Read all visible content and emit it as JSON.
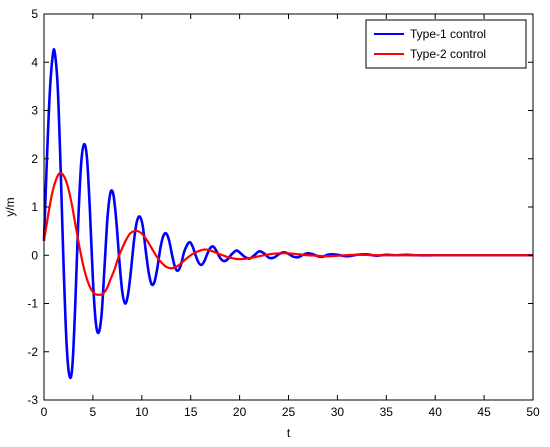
{
  "chart_data": {
    "type": "line",
    "title": "",
    "xlabel": "t",
    "ylabel": "y/m",
    "xlim": [
      0,
      50
    ],
    "ylim": [
      -3,
      5
    ],
    "xticks": [
      0,
      5,
      10,
      15,
      20,
      25,
      30,
      35,
      40,
      45,
      50
    ],
    "yticks": [
      -3,
      -2,
      -1,
      0,
      1,
      2,
      3,
      4,
      5
    ],
    "grid": false,
    "legend_position": "top-right",
    "series": [
      {
        "name": "Type-1 control",
        "color": "#0000ff",
        "x": [
          0,
          0.3,
          0.6,
          0.9,
          1.1,
          1.4,
          1.7,
          2.0,
          2.3,
          2.6,
          2.9,
          3.2,
          3.5,
          3.8,
          4.1,
          4.4,
          4.7,
          5.0,
          5.3,
          5.6,
          5.9,
          6.2,
          6.5,
          6.8,
          7.1,
          7.4,
          7.7,
          8.0,
          8.3,
          8.6,
          8.9,
          9.2,
          9.5,
          9.8,
          10.1,
          10.4,
          10.7,
          11.0,
          11.3,
          11.6,
          11.9,
          12.2,
          12.5,
          12.8,
          13.1,
          13.4,
          13.7,
          14.0,
          14.3,
          14.6,
          14.9,
          15.2,
          15.5,
          15.8,
          16.1,
          16.4,
          16.7,
          17.0,
          17.3,
          17.6,
          17.9,
          18.2,
          18.5,
          18.8,
          19.1,
          19.4,
          19.7,
          20.0,
          20.5,
          21.0,
          21.5,
          22.0,
          22.5,
          23.0,
          23.5,
          24.0,
          24.5,
          25.0,
          25.5,
          26.0,
          26.5,
          27.0,
          27.5,
          28.0,
          28.5,
          29.0,
          29.5,
          30.0,
          31.0,
          32.0,
          33.0,
          34.0,
          35.0,
          36.0,
          37.0,
          38.0,
          40.0,
          42.0,
          44.0,
          46.0,
          48.0,
          50.0
        ],
        "y": [
          0.3,
          2.0,
          3.4,
          4.15,
          4.2,
          3.5,
          1.8,
          -0.2,
          -1.8,
          -2.5,
          -2.3,
          -1.0,
          0.7,
          1.9,
          2.3,
          2.0,
          0.9,
          -0.5,
          -1.4,
          -1.6,
          -1.2,
          -0.2,
          0.8,
          1.3,
          1.25,
          0.7,
          -0.1,
          -0.75,
          -1.0,
          -0.8,
          -0.3,
          0.3,
          0.7,
          0.8,
          0.6,
          0.1,
          -0.35,
          -0.6,
          -0.55,
          -0.25,
          0.15,
          0.4,
          0.45,
          0.3,
          0.0,
          -0.25,
          -0.32,
          -0.2,
          0.05,
          0.2,
          0.27,
          0.18,
          0.0,
          -0.15,
          -0.2,
          -0.12,
          0.03,
          0.15,
          0.18,
          0.1,
          -0.02,
          -0.1,
          -0.12,
          -0.08,
          0.0,
          0.06,
          0.1,
          0.06,
          -0.03,
          -0.07,
          0.0,
          0.08,
          0.04,
          -0.05,
          -0.05,
          0.02,
          0.06,
          0.03,
          -0.03,
          -0.04,
          0.01,
          0.04,
          0.02,
          -0.02,
          -0.03,
          0.01,
          0.02,
          0.01,
          -0.02,
          0.01,
          0.02,
          -0.01,
          0.01,
          0.0,
          0.01,
          0.0,
          0.0,
          0.0,
          0.0,
          0.0,
          0.0,
          0.0
        ]
      },
      {
        "name": "Type-2 control",
        "color": "#ff0000",
        "x": [
          0,
          0.4,
          0.8,
          1.2,
          1.6,
          2.0,
          2.4,
          2.8,
          3.2,
          3.6,
          4.0,
          4.4,
          4.8,
          5.2,
          5.6,
          6.0,
          6.4,
          6.8,
          7.2,
          7.6,
          8.0,
          8.4,
          8.8,
          9.2,
          9.6,
          10.0,
          10.4,
          10.8,
          11.2,
          11.6,
          12.0,
          12.5,
          13.0,
          13.5,
          14.0,
          14.5,
          15.0,
          15.5,
          16.0,
          16.5,
          17.0,
          17.5,
          18.0,
          19.0,
          20.0,
          21.0,
          22.0,
          23.0,
          24.0,
          25.0,
          26.0,
          27.0,
          28.0,
          29.0,
          30.0,
          32.0,
          34.0,
          36.0,
          38.0,
          40.0,
          45.0,
          50.0
        ],
        "y": [
          0.3,
          0.8,
          1.25,
          1.55,
          1.7,
          1.65,
          1.45,
          1.1,
          0.65,
          0.2,
          -0.2,
          -0.5,
          -0.7,
          -0.8,
          -0.82,
          -0.8,
          -0.7,
          -0.5,
          -0.3,
          -0.05,
          0.15,
          0.32,
          0.45,
          0.5,
          0.5,
          0.45,
          0.35,
          0.22,
          0.08,
          -0.05,
          -0.15,
          -0.24,
          -0.27,
          -0.24,
          -0.17,
          -0.08,
          0.0,
          0.06,
          0.1,
          0.12,
          0.1,
          0.06,
          0.02,
          -0.05,
          -0.08,
          -0.06,
          -0.02,
          0.02,
          0.04,
          0.04,
          0.02,
          0.0,
          -0.01,
          -0.02,
          -0.01,
          0.01,
          0.0,
          0.0,
          0.0,
          0.0,
          0.0,
          0.0
        ]
      }
    ]
  }
}
